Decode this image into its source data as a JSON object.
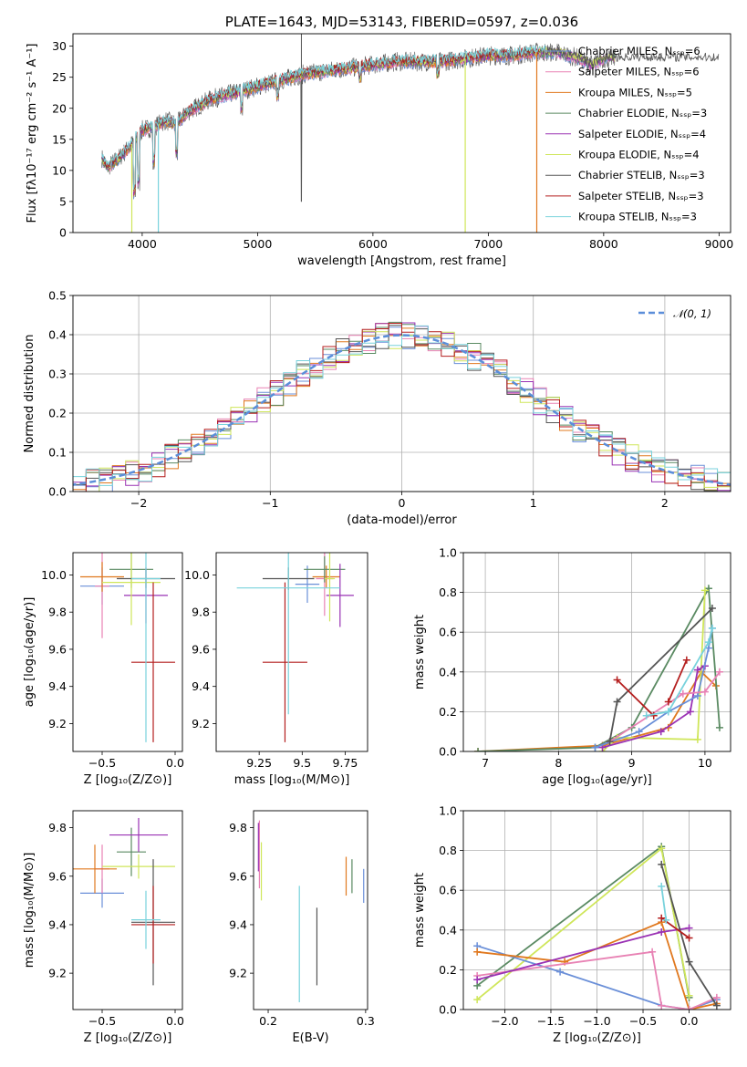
{
  "chart_data": [
    {
      "id": "spectrum",
      "type": "line",
      "title": "PLATE=1643, MJD=53143, FIBERID=0597, z=0.036",
      "xlabel": "wavelength [Angstrom, rest frame]",
      "ylabel": "Flux [fλ10⁻¹⁷ erg cm⁻² s⁻¹ A⁻¹]",
      "xlim": [
        3400,
        9100
      ],
      "ylim": [
        0,
        32
      ],
      "xticks": [
        4000,
        5000,
        6000,
        7000,
        8000,
        9000
      ],
      "yticks": [
        0,
        5,
        10,
        15,
        20,
        25,
        30
      ],
      "grid": false,
      "legend_position": "top-right",
      "data_envelope": {
        "x": [
          3650,
          3700,
          3800,
          3900,
          4000,
          4100,
          4200,
          4300,
          4400,
          4500,
          4600,
          4800,
          5000,
          5200,
          5400,
          5600,
          5800,
          6000,
          6200,
          6400,
          6600,
          6800,
          7000,
          7200,
          7400,
          7600,
          7800,
          7900,
          8000,
          8100
        ],
        "y": [
          12,
          10.5,
          12,
          14,
          16.5,
          17,
          18,
          17.5,
          19.5,
          20.5,
          21.5,
          22.5,
          23.5,
          24.5,
          25.5,
          26,
          26.5,
          27,
          27.5,
          27.5,
          27.5,
          28,
          28.5,
          28.5,
          29,
          29,
          28,
          27,
          28,
          28
        ]
      },
      "fits_end_x": [
        8050,
        8050,
        7450,
        8100,
        8100,
        8100,
        9000,
        7450,
        7500
      ],
      "series": [
        {
          "name": "Chabrier MILES, Nₛₛₚ=6",
          "color": "#6a8fd8"
        },
        {
          "name": "Salpeter MILES, Nₛₛₚ=6",
          "color": "#e882b4"
        },
        {
          "name": "Kroupa MILES, Nₛₛₚ=5",
          "color": "#e0781e"
        },
        {
          "name": "Chabrier ELODIE, Nₛₛₚ=3",
          "color": "#5a8a62"
        },
        {
          "name": "Salpeter ELODIE, Nₛₛₚ=4",
          "color": "#9a32b4"
        },
        {
          "name": "Kroupa ELODIE, Nₛₛₚ=4",
          "color": "#cfe65a"
        },
        {
          "name": "Chabrier STELIB, Nₛₛₚ=3",
          "color": "#555555"
        },
        {
          "name": "Salpeter STELIB, Nₛₛₚ=3",
          "color": "#b41e1e"
        },
        {
          "name": "Kroupa STELIB, Nₛₛₚ=3",
          "color": "#78d2dc"
        }
      ]
    },
    {
      "id": "residuals",
      "type": "line",
      "xlabel": "(data-model)/error",
      "ylabel": "Normed distribution",
      "xlim": [
        -2.5,
        2.5
      ],
      "ylim": [
        0,
        0.5
      ],
      "xticks": [
        -2,
        -1,
        0,
        1,
        2
      ],
      "yticks": [
        0.0,
        0.1,
        0.2,
        0.3,
        0.4,
        0.5
      ],
      "grid": true,
      "legend_position": "top-right",
      "legend_label": "𝒩(0, 1)",
      "gaussian_color": "#5b8ed9",
      "histogram_colors": [
        "#6a8fd8",
        "#e882b4",
        "#e0781e",
        "#5a8a62",
        "#9a32b4",
        "#cfe65a",
        "#555555",
        "#b41e1e",
        "#78d2dc"
      ]
    },
    {
      "id": "age_vs_Z",
      "type": "scatter",
      "xlabel": "Z [log₁₀(Z/Z⊙)]",
      "ylabel": "age  [log₁₀(age/yr)]",
      "xlim": [
        -0.7,
        0.05
      ],
      "ylim": [
        9.05,
        10.12
      ],
      "xticks": [
        -0.5,
        0.0
      ],
      "xticklabels": [
        "−0.5",
        "0.0"
      ],
      "yticks": [
        9.2,
        9.4,
        9.6,
        9.8,
        10.0
      ],
      "grid": false,
      "points": [
        {
          "x": -0.5,
          "y": 9.94,
          "xerr": 0.15,
          "yerr": 0.1,
          "color": "#6a8fd8"
        },
        {
          "x": -0.5,
          "y": 9.94,
          "xerr": 0.05,
          "yerr": 0.28,
          "color": "#e882b4"
        },
        {
          "x": -0.5,
          "y": 9.99,
          "xerr": 0.15,
          "yerr": 0.08,
          "color": "#e0781e"
        },
        {
          "x": -0.3,
          "y": 10.03,
          "xerr": 0.15,
          "yerr": 0.1,
          "color": "#5a8a62"
        },
        {
          "x": -0.2,
          "y": 9.89,
          "xerr": 0.15,
          "yerr": 0.15,
          "color": "#9a32b4"
        },
        {
          "x": -0.3,
          "y": 9.96,
          "xerr": 0.2,
          "yerr": 0.23,
          "color": "#cfe65a"
        },
        {
          "x": -0.2,
          "y": 9.98,
          "xerr": 0.2,
          "yerr": 0.05,
          "color": "#555555"
        },
        {
          "x": -0.15,
          "y": 9.53,
          "xerr": 0.15,
          "yerr": 0.43,
          "color": "#b41e1e"
        },
        {
          "x": -0.2,
          "y": 9.98,
          "xerr": 0.1,
          "yerr": 0.88,
          "color": "#78d2dc"
        }
      ]
    },
    {
      "id": "age_vs_mass",
      "type": "scatter",
      "xlabel": "mass [log₁₀(M/M⊙)]",
      "xlim": [
        9.0,
        9.88
      ],
      "ylim": [
        9.05,
        10.12
      ],
      "xticks": [
        9.25,
        9.5,
        9.75
      ],
      "yticks": [
        9.2,
        9.4,
        9.6,
        9.8,
        10.0
      ],
      "grid": false,
      "points": [
        {
          "x": 9.53,
          "y": 9.95,
          "xerr": 0.07,
          "yerr": 0.1,
          "color": "#6a8fd8"
        },
        {
          "x": 9.63,
          "y": 9.98,
          "xerr": 0.05,
          "yerr": 0.2,
          "color": "#e882b4"
        },
        {
          "x": 9.64,
          "y": 9.99,
          "xerr": 0.08,
          "yerr": 0.06,
          "color": "#e0781e"
        },
        {
          "x": 9.63,
          "y": 10.03,
          "xerr": 0.12,
          "yerr": 0.07,
          "color": "#5a8a62"
        },
        {
          "x": 9.72,
          "y": 9.89,
          "xerr": 0.08,
          "yerr": 0.17,
          "color": "#9a32b4"
        },
        {
          "x": 9.66,
          "y": 9.98,
          "xerr": 0.03,
          "yerr": 0.23,
          "color": "#cfe65a"
        },
        {
          "x": 9.42,
          "y": 9.98,
          "xerr": 0.15,
          "yerr": 0.06,
          "color": "#555555"
        },
        {
          "x": 9.4,
          "y": 9.53,
          "xerr": 0.13,
          "yerr": 0.43,
          "color": "#b41e1e"
        },
        {
          "x": 9.42,
          "y": 9.93,
          "xerr": 0.3,
          "yerr": 0.68,
          "color": "#78d2dc"
        }
      ]
    },
    {
      "id": "mass_weight_vs_age",
      "type": "line",
      "xlabel": "age  [log₁₀(age/yr)]",
      "ylabel": "mass weight",
      "xlim": [
        6.7,
        10.35
      ],
      "ylim": [
        0,
        1
      ],
      "xticks": [
        7,
        8,
        9,
        10
      ],
      "yticks": [
        0.0,
        0.2,
        0.4,
        0.6,
        0.8,
        1.0
      ],
      "grid": true,
      "series": [
        {
          "color": "#e0781e",
          "x": [
            6.9,
            8.6,
            9.5,
            9.95,
            10.15
          ],
          "y": [
            0.0,
            0.03,
            0.12,
            0.4,
            0.33
          ]
        },
        {
          "color": "#5a8a62",
          "x": [
            6.9,
            8.5,
            9.0,
            10.05,
            10.2
          ],
          "y": [
            0.0,
            0.02,
            0.12,
            0.82,
            0.12
          ]
        },
        {
          "color": "#cfe65a",
          "x": [
            8.6,
            8.8,
            9.9,
            10.0
          ],
          "y": [
            0.0,
            0.07,
            0.06,
            0.81
          ]
        },
        {
          "color": "#9a32b4",
          "x": [
            8.6,
            9.4,
            9.8,
            9.9,
            10.0
          ],
          "y": [
            0.02,
            0.1,
            0.2,
            0.41,
            0.43
          ]
        },
        {
          "color": "#6a8fd8",
          "x": [
            8.5,
            9.1,
            9.5,
            9.9,
            10.05,
            10.1
          ],
          "y": [
            0.02,
            0.1,
            0.2,
            0.28,
            0.52,
            0.62
          ]
        },
        {
          "color": "#e882b4",
          "x": [
            8.7,
            9.7,
            10.0,
            10.2
          ],
          "y": [
            0.05,
            0.29,
            0.3,
            0.4
          ]
        },
        {
          "color": "#555555",
          "x": [
            8.7,
            8.8,
            10.1
          ],
          "y": [
            0.05,
            0.25,
            0.72
          ]
        },
        {
          "color": "#b41e1e",
          "x": [
            8.8,
            9.3
          ],
          "y": [
            0.36,
            0.18
          ]
        },
        {
          "color": "#b41e1e",
          "x": [
            9.5,
            9.75
          ],
          "y": [
            0.25,
            0.46
          ]
        },
        {
          "color": "#78d2dc",
          "x": [
            9.2,
            9.5,
            10.05,
            10.1
          ],
          "y": [
            0.18,
            0.2,
            0.55,
            0.62
          ]
        }
      ]
    },
    {
      "id": "mass_vs_Z",
      "type": "scatter",
      "xlabel": "Z [log₁₀(Z/Z⊙)]",
      "ylabel": "mass [log₁₀(M/M⊙)]",
      "xlim": [
        -0.7,
        0.05
      ],
      "ylim": [
        9.05,
        9.87
      ],
      "xticks": [
        -0.5,
        0.0
      ],
      "xticklabels": [
        "−0.5",
        "0.0"
      ],
      "yticks": [
        9.2,
        9.4,
        9.6,
        9.8
      ],
      "grid": false,
      "points": [
        {
          "x": -0.5,
          "y": 9.53,
          "xerr": 0.15,
          "yerr": 0.06,
          "color": "#6a8fd8"
        },
        {
          "x": -0.5,
          "y": 9.63,
          "xerr": 0.05,
          "yerr": 0.1,
          "color": "#e882b4"
        },
        {
          "x": -0.55,
          "y": 9.63,
          "xerr": 0.15,
          "yerr": 0.1,
          "color": "#e0781e"
        },
        {
          "x": -0.3,
          "y": 9.7,
          "xerr": 0.1,
          "yerr": 0.1,
          "color": "#5a8a62"
        },
        {
          "x": -0.25,
          "y": 9.77,
          "xerr": 0.2,
          "yerr": 0.07,
          "color": "#9a32b4"
        },
        {
          "x": -0.25,
          "y": 9.64,
          "xerr": 0.25,
          "yerr": 0.05,
          "color": "#cfe65a"
        },
        {
          "x": -0.15,
          "y": 9.41,
          "xerr": 0.15,
          "yerr": 0.26,
          "color": "#555555"
        },
        {
          "x": -0.15,
          "y": 9.4,
          "xerr": 0.15,
          "yerr": 0.16,
          "color": "#b41e1e"
        },
        {
          "x": -0.2,
          "y": 9.42,
          "xerr": 0.1,
          "yerr": 0.12,
          "color": "#78d2dc"
        }
      ]
    },
    {
      "id": "mass_vs_ebv",
      "type": "scatter",
      "xlabel": "E(B-V)",
      "xlim": [
        0.185,
        0.302
      ],
      "ylim": [
        9.05,
        9.87
      ],
      "xticks": [
        0.2,
        0.3
      ],
      "yticks": [
        9.2,
        9.4,
        9.6,
        9.8
      ],
      "grid": false,
      "points": [
        {
          "x": 0.298,
          "y": 9.56,
          "yerr": 0.07,
          "color": "#6a8fd8"
        },
        {
          "x": 0.191,
          "y": 9.69,
          "yerr": 0.14,
          "color": "#e882b4"
        },
        {
          "x": 0.28,
          "y": 9.6,
          "yerr": 0.08,
          "color": "#e0781e"
        },
        {
          "x": 0.286,
          "y": 9.6,
          "yerr": 0.07,
          "color": "#5a8a62"
        },
        {
          "x": 0.19,
          "y": 9.72,
          "yerr": 0.1,
          "color": "#9a32b4"
        },
        {
          "x": 0.193,
          "y": 9.62,
          "yerr": 0.12,
          "color": "#cfe65a"
        },
        {
          "x": 0.25,
          "y": 9.31,
          "yerr": 0.16,
          "color": "#555555"
        },
        {
          "x": 0.232,
          "y": 9.32,
          "yerr": 0.24,
          "color": "#78d2dc"
        }
      ]
    },
    {
      "id": "mass_weight_vs_Z",
      "type": "line",
      "xlabel": "Z [log₁₀(Z/Z⊙)]",
      "ylabel": "mass weight",
      "xlim": [
        -2.45,
        0.45
      ],
      "ylim": [
        0,
        1
      ],
      "xticks": [
        -2.0,
        -1.5,
        -1.0,
        -0.5,
        0.0
      ],
      "xticklabels": [
        "−2.0",
        "−1.5",
        "−1.0",
        "−0.5",
        "0.0"
      ],
      "yticks": [
        0.0,
        0.2,
        0.4,
        0.6,
        0.8,
        1.0
      ],
      "grid": true,
      "series": [
        {
          "color": "#5a8a62",
          "x": [
            -2.3,
            -0.3,
            0.0
          ],
          "y": [
            0.12,
            0.82,
            0.06
          ]
        },
        {
          "color": "#cfe65a",
          "x": [
            -2.3,
            -0.3,
            0.0
          ],
          "y": [
            0.05,
            0.81,
            0.07
          ]
        },
        {
          "color": "#6a8fd8",
          "x": [
            -2.3,
            -1.4,
            -0.3,
            0.0,
            0.3
          ],
          "y": [
            0.32,
            0.19,
            0.02,
            0.0,
            0.05
          ]
        },
        {
          "color": "#e0781e",
          "x": [
            -2.3,
            -1.35,
            -0.3,
            0.0,
            0.3
          ],
          "y": [
            0.29,
            0.24,
            0.44,
            0.0,
            0.03
          ]
        },
        {
          "color": "#e882b4",
          "x": [
            -2.3,
            -0.4,
            -0.3,
            0.0,
            0.3
          ],
          "y": [
            0.17,
            0.29,
            0.02,
            0.0,
            0.06
          ]
        },
        {
          "color": "#9a32b4",
          "x": [
            -2.3,
            -0.3,
            0.0
          ],
          "y": [
            0.15,
            0.39,
            0.41
          ]
        },
        {
          "color": "#555555",
          "x": [
            -0.3,
            0.0,
            0.3
          ],
          "y": [
            0.73,
            0.24,
            0.02
          ]
        },
        {
          "color": "#b41e1e",
          "x": [
            -0.3,
            0.0
          ],
          "y": [
            0.46,
            0.36
          ]
        },
        {
          "color": "#78d2dc",
          "x": [
            -0.3,
            -0.25
          ],
          "y": [
            0.62,
            0.45
          ]
        }
      ]
    }
  ]
}
